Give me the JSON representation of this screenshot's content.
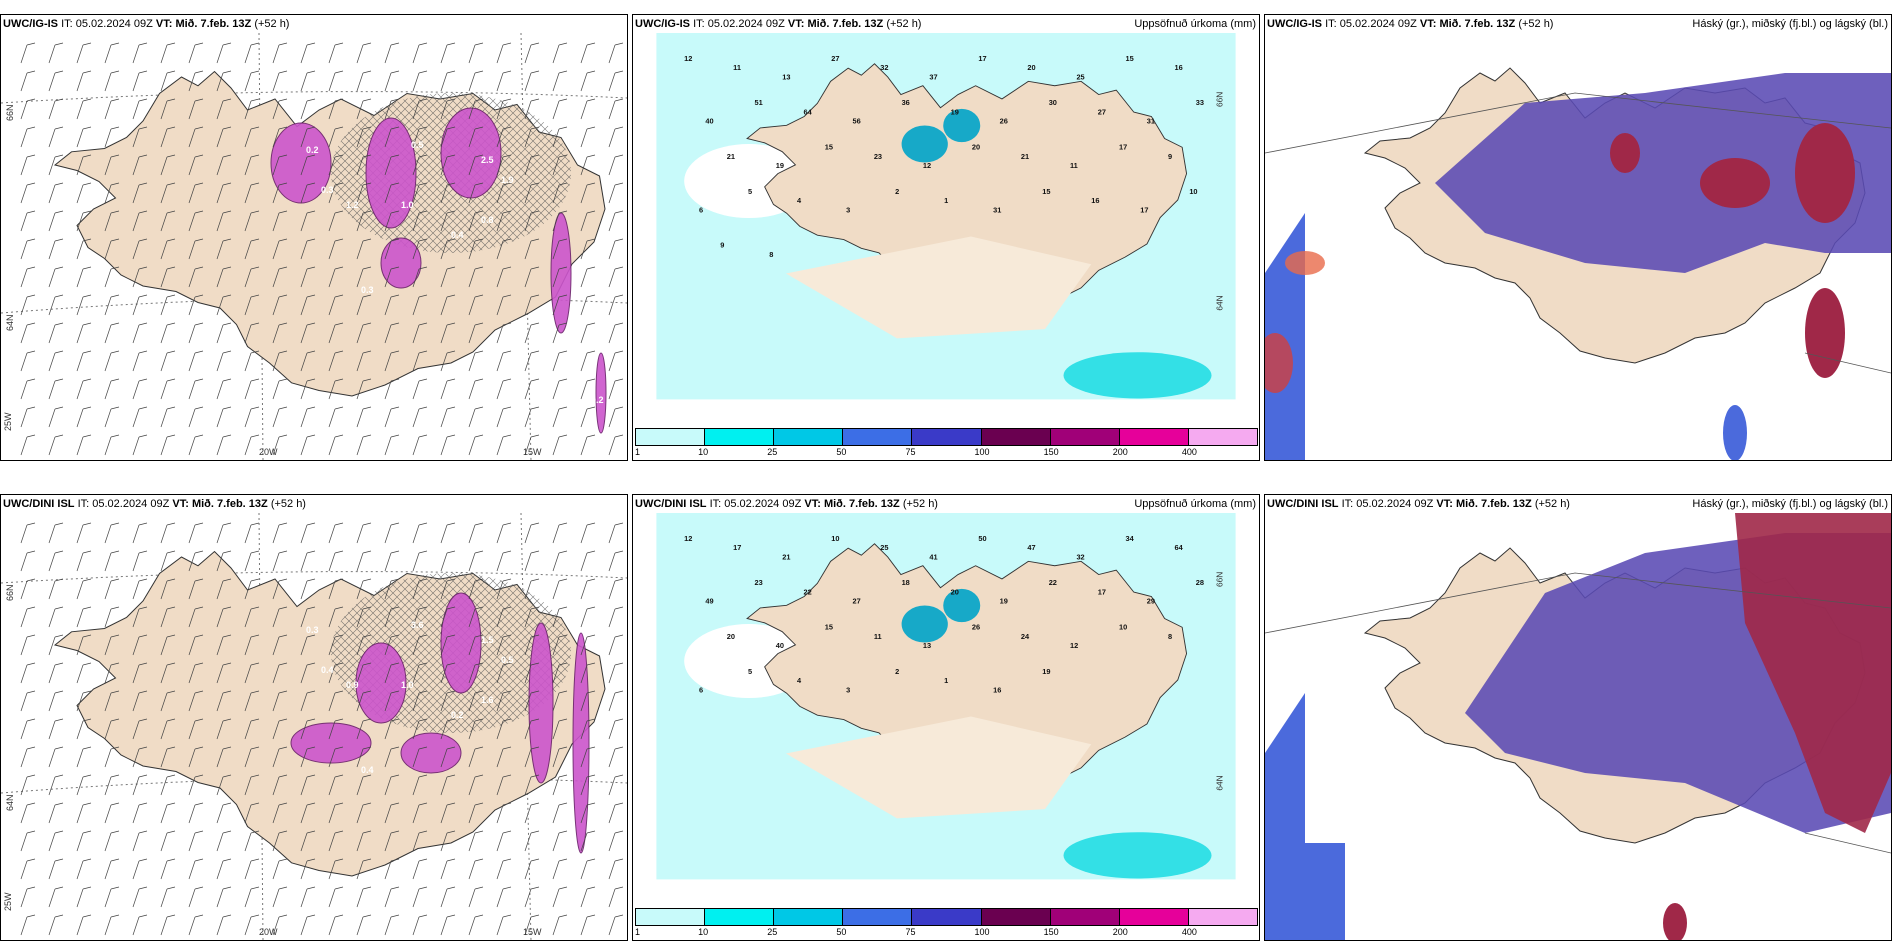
{
  "panels": [
    {
      "id": "p11",
      "model": "UWC/IG-IS",
      "it_label": "IT:",
      "it_value": "05.02.2024 09Z",
      "vt_label": "VT:",
      "vt_value": "Mið. 7.feb. 13Z",
      "lead": "(+52 h)",
      "right_title": "",
      "axis_labels": [
        "20W",
        "15W",
        "66N",
        "64N",
        "25W"
      ],
      "values": [
        "0.2",
        "0.3",
        "1.2",
        "1.0",
        "0.5",
        "2.5",
        "1.9",
        "0.4",
        "0.8",
        "0.3",
        "0.6",
        "0.2"
      ]
    },
    {
      "id": "p12",
      "model": "UWC/IG-IS",
      "it_label": "IT:",
      "it_value": "05.02.2024 09Z",
      "vt_label": "VT:",
      "vt_value": "Mið. 7.feb. 13Z",
      "lead": "(+52 h)",
      "right_title": "Uppsöfnuð úrkoma (mm)",
      "axis_labels": [
        "66N",
        "64N"
      ],
      "values": [
        "12",
        "11",
        "13",
        "27",
        "32",
        "37",
        "17",
        "20",
        "25",
        "15",
        "16",
        "40",
        "51",
        "64",
        "56",
        "36",
        "19",
        "26",
        "30",
        "27",
        "31",
        "33",
        "21",
        "19",
        "15",
        "23",
        "12",
        "20",
        "21",
        "11",
        "17",
        "9",
        "6",
        "5",
        "4",
        "3",
        "2",
        "1",
        "31",
        "15",
        "16",
        "17",
        "10",
        "9",
        "8"
      ]
    },
    {
      "id": "p13",
      "model": "UWC/IG-IS",
      "it_label": "IT:",
      "it_value": "05.02.2024 09Z",
      "vt_label": "VT:",
      "vt_value": "Mið. 7.feb. 13Z",
      "lead": "(+52 h)",
      "right_title": "Háský (gr.), miðský (fj.bl.) og lágský (bl.)",
      "axis_labels": [],
      "values": []
    },
    {
      "id": "p21",
      "model": "UWC/DINI ISL",
      "it_label": "IT:",
      "it_value": "05.02.2024 09Z",
      "vt_label": "VT:",
      "vt_value": "Mið. 7.feb. 13Z",
      "lead": "(+52 h)",
      "right_title": "",
      "axis_labels": [
        "20W",
        "15W",
        "66N",
        "64N",
        "25W"
      ],
      "values": [
        "0.3",
        "0.4",
        "0.9",
        "1.0",
        "3.6",
        "1.5",
        "0.5",
        "0.2",
        "1.6",
        "0.4"
      ]
    },
    {
      "id": "p22",
      "model": "UWC/DINI ISL",
      "it_label": "IT:",
      "it_value": "05.02.2024 09Z",
      "vt_label": "VT:",
      "vt_value": "Mið. 7.feb. 13Z",
      "lead": "(+52 h)",
      "right_title": "Uppsöfnuð úrkoma (mm)",
      "axis_labels": [
        "66N",
        "64N"
      ],
      "values": [
        "12",
        "17",
        "21",
        "10",
        "25",
        "41",
        "50",
        "47",
        "32",
        "34",
        "64",
        "49",
        "23",
        "22",
        "27",
        "18",
        "20",
        "19",
        "22",
        "17",
        "29",
        "28",
        "20",
        "40",
        "15",
        "11",
        "13",
        "26",
        "24",
        "12",
        "10",
        "8",
        "6",
        "5",
        "4",
        "3",
        "2",
        "1",
        "16",
        "19"
      ]
    },
    {
      "id": "p23",
      "model": "UWC/DINI ISL",
      "it_label": "IT:",
      "it_value": "05.02.2024 09Z",
      "vt_label": "VT:",
      "vt_value": "Mið. 7.feb. 13Z",
      "lead": "(+52 h)",
      "right_title": "Háský (gr.), miðský (fj.bl.) og lágský (bl.)",
      "axis_labels": [],
      "values": []
    }
  ],
  "colorbar": {
    "labels": [
      "1",
      "10",
      "25",
      "50",
      "75",
      "100",
      "150",
      "200",
      "400"
    ],
    "colors": [
      "#c8fafa",
      "#00f0f0",
      "#00c8e6",
      "#3c6ee6",
      "#3a3ac8",
      "#6a0050",
      "#a00078",
      "#e6009a",
      "#f5aaf0"
    ]
  },
  "colors": {
    "land": "#f0dcc6",
    "precip_light": "#c8fafa",
    "precip_med": "#33e0e6",
    "cloud_low": "#4b6adc",
    "cloud_mid": "#5a4ab4",
    "cloud_high": "#a02848",
    "wind_precip": "#cc55cc"
  }
}
